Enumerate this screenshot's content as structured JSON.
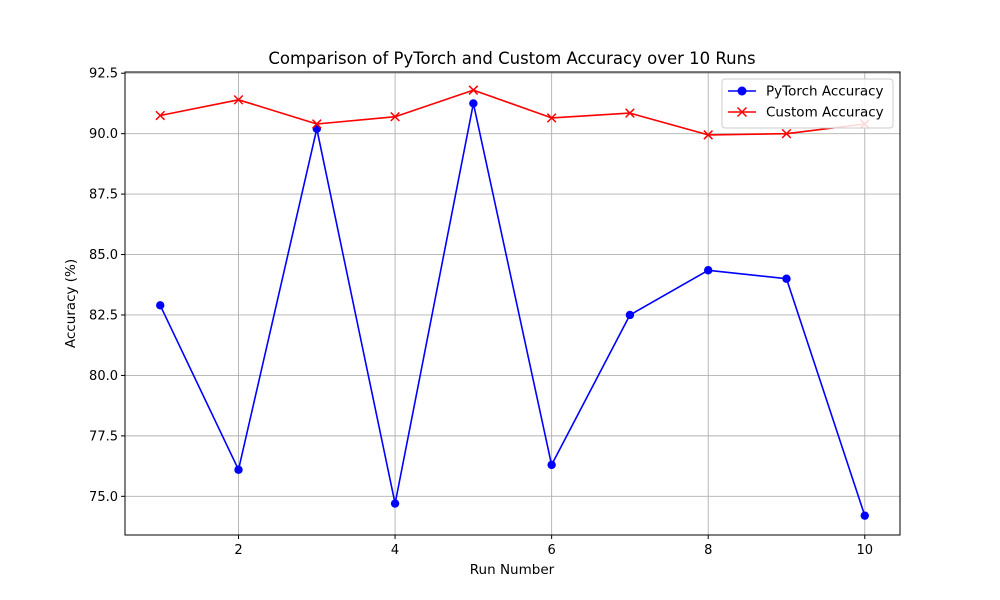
{
  "chart_data": {
    "type": "line",
    "title": "Comparison of PyTorch and Custom Accuracy over 10 Runs",
    "xlabel": "Run Number",
    "ylabel": "Accuracy (%)",
    "x": [
      1,
      2,
      3,
      4,
      5,
      6,
      7,
      8,
      9,
      10
    ],
    "xlim": [
      0.55,
      10.45
    ],
    "ylim": [
      73.4,
      92.55
    ],
    "xticks": [
      2,
      4,
      6,
      8,
      10
    ],
    "xtick_labels": [
      "2",
      "4",
      "6",
      "8",
      "10"
    ],
    "yticks": [
      75.0,
      77.5,
      80.0,
      82.5,
      85.0,
      87.5,
      90.0,
      92.5
    ],
    "ytick_labels": [
      "75.0",
      "77.5",
      "80.0",
      "82.5",
      "85.0",
      "87.5",
      "90.0",
      "92.5"
    ],
    "grid": true,
    "legend_position": "top-right",
    "series": [
      {
        "name": "PyTorch Accuracy",
        "color": "#0000ff",
        "marker": "circle",
        "values": [
          82.9,
          76.1,
          90.2,
          74.7,
          91.25,
          76.3,
          82.5,
          84.35,
          84.0,
          74.2
        ]
      },
      {
        "name": "Custom Accuracy",
        "color": "#ff0000",
        "marker": "x",
        "values": [
          90.75,
          91.4,
          90.4,
          90.7,
          91.8,
          90.65,
          90.85,
          89.95,
          90.0,
          90.4
        ]
      }
    ]
  }
}
